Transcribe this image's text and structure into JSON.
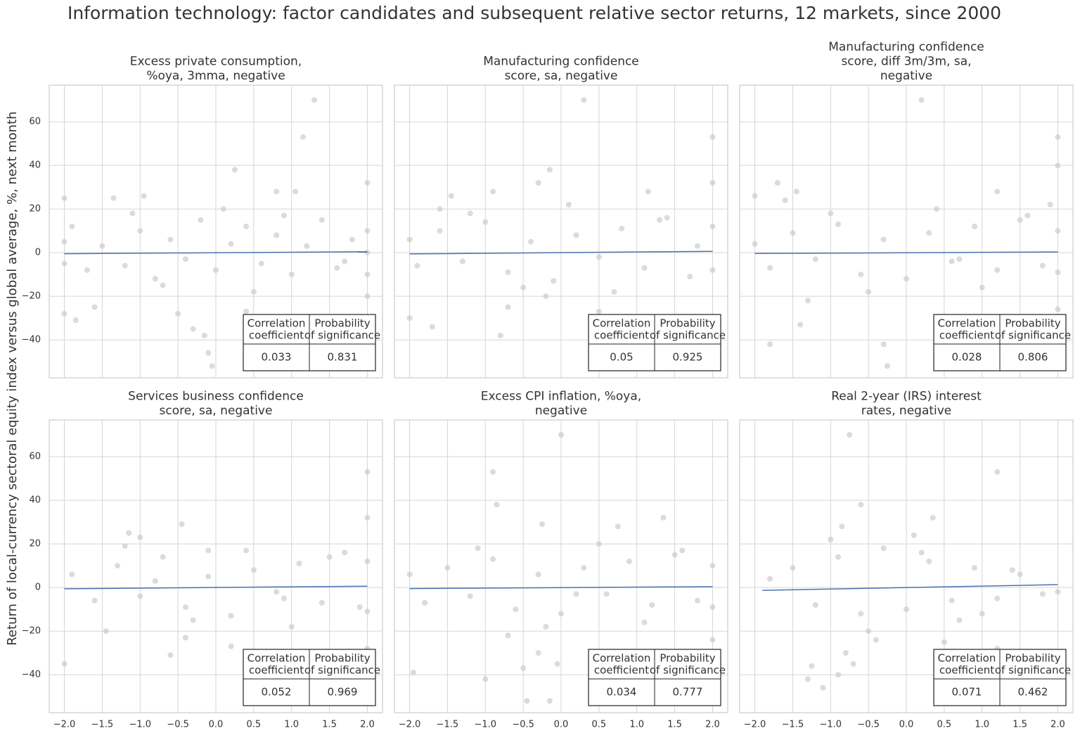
{
  "title": "Information technology: factor candidates and subsequent relative sector returns, 12 markets, since 2000",
  "y_label": "Return of local-currency sectoral equity index versus global average, %, next month",
  "chart_data": [
    {
      "type": "scatter",
      "title": [
        "Excess private consumption,",
        "%oya, 3mma, negative"
      ],
      "series": [
        {
          "color": "#c8c8c8",
          "x": [
            1.3,
            1.15,
            0.25,
            0.8,
            1.05,
            -0.95,
            -1.35,
            -2,
            2,
            -0.05,
            -0.1,
            -0.15,
            -1.85,
            -1.6,
            -2,
            2,
            -0.5,
            0.4,
            0.65,
            -0.3,
            -2,
            -2,
            -1.9,
            -1.7,
            -1.5,
            -1.2,
            -1,
            -0.8,
            -0.6,
            -0.4,
            -0.2,
            0,
            0.2,
            0.4,
            0.6,
            0.8,
            1,
            1.2,
            1.4,
            1.6,
            1.8,
            2,
            2,
            2,
            -1.1,
            -0.7,
            0.1,
            0.5,
            0.9,
            1.7
          ],
          "values": [
            70,
            53,
            38,
            28,
            28,
            26,
            25,
            25,
            32,
            -52,
            -46,
            -38,
            -31,
            -25,
            -28,
            -20,
            -28,
            -27,
            -30,
            -35,
            5,
            -5,
            12,
            -8,
            3,
            -6,
            10,
            -12,
            6,
            -3,
            15,
            -8,
            4,
            12,
            -5,
            8,
            -10,
            3,
            15,
            -7,
            6,
            10,
            -10,
            0,
            18,
            -15,
            20,
            -18,
            17,
            -4
          ]
        }
      ],
      "fit": {
        "color": "#4c72b0",
        "x": [
          -2,
          2
        ],
        "values": [
          -0.5,
          0.4
        ]
      },
      "table": {
        "header": [
          [
            "Correlation",
            "coefficient"
          ],
          [
            "Probability",
            "of significance"
          ]
        ],
        "values": [
          0.033,
          0.831
        ]
      },
      "xlim": [
        -2.2,
        2.2
      ],
      "ylim": [
        -57.4,
        76.8
      ],
      "xticks": [
        -2,
        -1.5,
        -1,
        -0.5,
        0,
        0.5,
        1,
        1.5,
        2
      ],
      "xtick_labels": false,
      "yticks": [
        {
          "value": -40,
          "label": "−40"
        },
        {
          "value": -20,
          "label": "−20"
        },
        0,
        20,
        40,
        60
      ],
      "ytick_labels": true
    },
    {
      "type": "scatter",
      "title": [
        "Manufacturing confidence",
        "score, sa, negative"
      ],
      "series": [
        {
          "color": "#c8c8c8",
          "x": [
            0.3,
            2,
            -0.15,
            -0.3,
            -1.45,
            -1.6,
            -0.9,
            1.15,
            2,
            -0.8,
            -2,
            -1.7,
            -0.7,
            0.5,
            2,
            -2,
            -1.9,
            -1.6,
            -1.3,
            -1,
            -0.7,
            -0.4,
            -0.1,
            0.2,
            0.5,
            0.8,
            1.1,
            1.4,
            1.7,
            2,
            2,
            -1.2,
            -0.5,
            0.1,
            0.7,
            1.3,
            1.8,
            -0.2
          ],
          "values": [
            70,
            53,
            38,
            32,
            26,
            20,
            28,
            28,
            32,
            -38,
            -30,
            -34,
            -25,
            -27,
            -30,
            6,
            -6,
            10,
            -4,
            14,
            -9,
            5,
            -13,
            8,
            -2,
            11,
            -7,
            16,
            -11,
            12,
            -8,
            18,
            -16,
            22,
            -18,
            15,
            3,
            -20
          ]
        }
      ],
      "fit": {
        "color": "#4c72b0",
        "x": [
          -2,
          2
        ],
        "values": [
          -0.6,
          0.6
        ]
      },
      "table": {
        "header": [
          [
            "Correlation",
            "coefficient"
          ],
          [
            "Probability",
            "of significance"
          ]
        ],
        "values": [
          0.05,
          0.925
        ]
      },
      "xlim": [
        -2.2,
        2.2
      ],
      "ylim": [
        -57.4,
        76.8
      ],
      "xticks": [
        -2,
        -1.5,
        -1,
        -0.5,
        0,
        0.5,
        1,
        1.5,
        2
      ],
      "xtick_labels": false,
      "yticks": [
        -40,
        -20,
        0,
        20,
        40,
        60
      ],
      "ytick_labels": false
    },
    {
      "type": "scatter",
      "title": [
        "Manufacturing confidence",
        "score, diff 3m/3m, sa,",
        "negative"
      ],
      "series": [
        {
          "color": "#c8c8c8",
          "x": [
            0.2,
            2,
            2,
            -1.7,
            -1.45,
            -1.6,
            -2,
            -0.25,
            -0.3,
            -1.8,
            -1.4,
            1.2,
            1.9,
            2,
            -2,
            -1.8,
            -1.5,
            -1.2,
            -0.9,
            -0.6,
            -0.3,
            0,
            0.3,
            0.6,
            0.9,
            1.2,
            1.5,
            1.8,
            2,
            2,
            -1,
            -0.5,
            0.4,
            1,
            1.6,
            -1.3,
            0.7
          ],
          "values": [
            70,
            53,
            40,
            32,
            28,
            24,
            26,
            -52,
            -42,
            -42,
            -33,
            28,
            22,
            -26,
            4,
            -7,
            9,
            -3,
            13,
            -10,
            6,
            -12,
            9,
            -4,
            12,
            -8,
            15,
            -6,
            10,
            -9,
            18,
            -18,
            20,
            -16,
            17,
            -22,
            -3
          ]
        }
      ],
      "fit": {
        "color": "#4c72b0",
        "x": [
          -2,
          2
        ],
        "values": [
          -0.4,
          0.3
        ]
      },
      "table": {
        "header": [
          [
            "Correlation",
            "coefficient"
          ],
          [
            "Probability",
            "of significance"
          ]
        ],
        "values": [
          0.028,
          0.806
        ]
      },
      "xlim": [
        -2.2,
        2.2
      ],
      "ylim": [
        -57.4,
        76.8
      ],
      "xticks": [
        -2,
        -1.5,
        -1,
        -0.5,
        0,
        0.5,
        1,
        1.5,
        2
      ],
      "xtick_labels": false,
      "yticks": [
        -40,
        -20,
        0,
        20,
        40,
        60
      ],
      "ytick_labels": false
    },
    {
      "type": "scatter",
      "title": [
        "Services business confidence",
        "score, sa, negative"
      ],
      "series": [
        {
          "color": "#c8c8c8",
          "x": [
            2,
            2,
            -0.45,
            -1.15,
            -1,
            -0.1,
            -0.6,
            -2,
            -0.4,
            0.2,
            -1.45,
            2,
            -1.9,
            -1.6,
            -1.3,
            -1,
            -0.7,
            -0.4,
            -0.1,
            0.2,
            0.5,
            0.8,
            1.1,
            1.4,
            1.7,
            2,
            2,
            -1.2,
            -0.3,
            0.4,
            1,
            1.5,
            -0.8,
            0.9,
            1.9
          ],
          "values": [
            53,
            32,
            29,
            25,
            23,
            17,
            -31,
            -35,
            -23,
            -27,
            -20,
            -28,
            6,
            -6,
            10,
            -4,
            14,
            -9,
            5,
            -13,
            8,
            -2,
            11,
            -7,
            16,
            -11,
            12,
            19,
            -15,
            17,
            -18,
            14,
            3,
            -5,
            -9
          ]
        }
      ],
      "fit": {
        "color": "#4c72b0",
        "x": [
          -2,
          2
        ],
        "values": [
          -0.6,
          0.6
        ]
      },
      "table": {
        "header": [
          [
            "Correlation",
            "coefficient"
          ],
          [
            "Probability",
            "of significance"
          ]
        ],
        "values": [
          0.052,
          0.969
        ]
      },
      "xlim": [
        -2.2,
        2.2
      ],
      "ylim": [
        -57.4,
        76.8
      ],
      "xticks": [
        {
          "value": -2,
          "label": "−2.0"
        },
        {
          "value": -1.5,
          "label": "−1.5"
        },
        {
          "value": -1,
          "label": "−1.0"
        },
        {
          "value": -0.5,
          "label": "−0.5"
        },
        {
          "value": 0,
          "label": "0.0"
        },
        {
          "value": 0.5,
          "label": "0.5"
        },
        {
          "value": 1,
          "label": "1.0"
        },
        {
          "value": 1.5,
          "label": "1.5"
        },
        {
          "value": 2,
          "label": "2.0"
        }
      ],
      "xtick_labels": true,
      "yticks": [
        {
          "value": -40,
          "label": "−40"
        },
        {
          "value": -20,
          "label": "−20"
        },
        0,
        20,
        40,
        60
      ],
      "ytick_labels": true
    },
    {
      "type": "scatter",
      "title": [
        "Excess CPI inflation, %oya,",
        "negative"
      ],
      "series": [
        {
          "color": "#c8c8c8",
          "x": [
            0,
            -0.9,
            -0.85,
            1.35,
            0.75,
            -0.25,
            -0.45,
            -0.15,
            -1.95,
            -0.5,
            -1,
            -0.05,
            -0.3,
            2,
            -2,
            -1.8,
            -1.5,
            -1.2,
            -0.9,
            -0.6,
            -0.3,
            0,
            0.3,
            0.6,
            0.9,
            1.2,
            1.5,
            1.8,
            2,
            2,
            -1.1,
            -0.2,
            0.5,
            1.1,
            1.6,
            -0.7,
            0.2
          ],
          "values": [
            70,
            53,
            38,
            32,
            28,
            29,
            -52,
            -52,
            -39,
            -37,
            -42,
            -35,
            -30,
            -24,
            6,
            -7,
            9,
            -4,
            13,
            -10,
            6,
            -12,
            9,
            -3,
            12,
            -8,
            15,
            -6,
            10,
            -9,
            18,
            -18,
            20,
            -16,
            17,
            -22,
            -3
          ]
        }
      ],
      "fit": {
        "color": "#4c72b0",
        "x": [
          -2,
          2
        ],
        "values": [
          -0.5,
          0.4
        ]
      },
      "table": {
        "header": [
          [
            "Correlation",
            "coefficient"
          ],
          [
            "Probability",
            "of significance"
          ]
        ],
        "values": [
          0.034,
          0.777
        ]
      },
      "xlim": [
        -2.2,
        2.2
      ],
      "ylim": [
        -57.4,
        76.8
      ],
      "xticks": [
        {
          "value": -2,
          "label": "−2.0"
        },
        {
          "value": -1.5,
          "label": "−1.5"
        },
        {
          "value": -1,
          "label": "−1.0"
        },
        {
          "value": -0.5,
          "label": "−0.5"
        },
        {
          "value": 0,
          "label": "0.0"
        },
        {
          "value": 0.5,
          "label": "0.5"
        },
        {
          "value": 1,
          "label": "1.0"
        },
        {
          "value": 1.5,
          "label": "1.5"
        },
        {
          "value": 2,
          "label": "2.0"
        }
      ],
      "xtick_labels": true,
      "yticks": [
        -40,
        -20,
        0,
        20,
        40,
        60
      ],
      "ytick_labels": false
    },
    {
      "type": "scatter",
      "title": [
        "Real 2-year (IRS) interest",
        "rates, negative"
      ],
      "series": [
        {
          "color": "#c8c8c8",
          "x": [
            -0.75,
            1.2,
            -0.6,
            0.35,
            -0.85,
            -1.1,
            -1.3,
            -1.25,
            -0.9,
            -0.7,
            -0.8,
            0.5,
            1.2,
            -1.8,
            -1.5,
            -1.2,
            -0.9,
            -0.6,
            -0.3,
            0,
            0.3,
            0.6,
            0.9,
            1.2,
            1.5,
            1.8,
            2,
            -1,
            -0.5,
            0.1,
            0.7,
            1.4,
            -0.4,
            0.2,
            1
          ],
          "values": [
            70,
            53,
            38,
            32,
            28,
            -46,
            -42,
            -36,
            -40,
            -35,
            -30,
            -25,
            -28,
            4,
            9,
            -8,
            14,
            -12,
            18,
            -10,
            12,
            -6,
            9,
            -5,
            6,
            -3,
            -2,
            22,
            -20,
            24,
            -15,
            8,
            -24,
            16,
            -12
          ]
        }
      ],
      "fit": {
        "color": "#4c72b0",
        "x": [
          -1.9,
          2
        ],
        "values": [
          -1.3,
          1.3
        ]
      },
      "table": {
        "header": [
          [
            "Correlation",
            "coefficient"
          ],
          [
            "Probability",
            "of significance"
          ]
        ],
        "values": [
          0.071,
          0.462
        ]
      },
      "xlim": [
        -2.2,
        2.2
      ],
      "ylim": [
        -57.4,
        76.8
      ],
      "xticks": [
        {
          "value": -2,
          "label": "−2.0"
        },
        {
          "value": -1.5,
          "label": "−1.5"
        },
        {
          "value": -1,
          "label": "−1.0"
        },
        {
          "value": -0.5,
          "label": "−0.5"
        },
        {
          "value": 0,
          "label": "0.0"
        },
        {
          "value": 0.5,
          "label": "0.5"
        },
        {
          "value": 1,
          "label": "1.0"
        },
        {
          "value": 1.5,
          "label": "1.5"
        },
        {
          "value": 2,
          "label": "2.0"
        }
      ],
      "xtick_labels": true,
      "yticks": [
        -40,
        -20,
        0,
        20,
        40,
        60
      ],
      "ytick_labels": false
    }
  ]
}
